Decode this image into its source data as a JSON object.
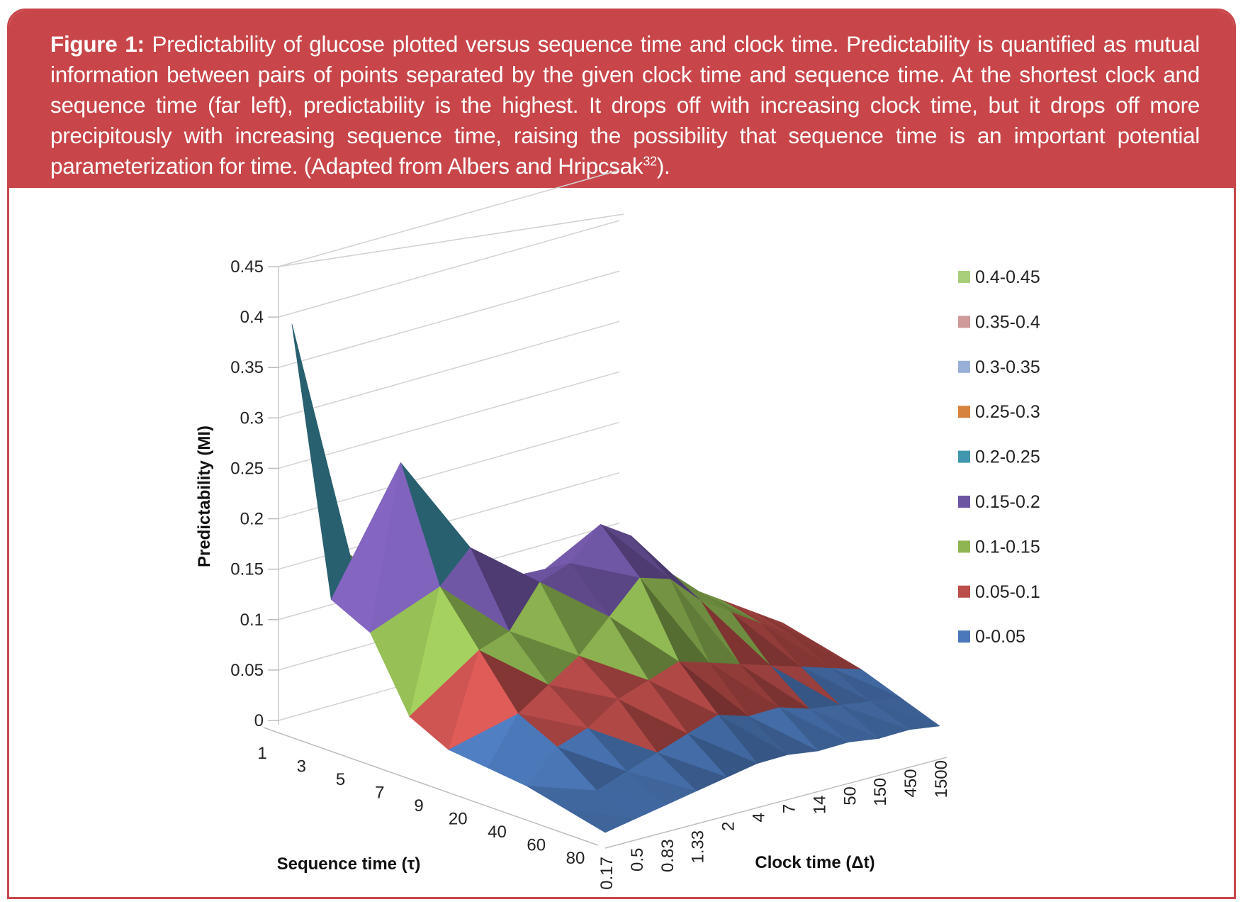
{
  "caption": {
    "label": "Figure 1:",
    "text": " Predictability of glucose plotted versus sequence time and clock time. Predictability is quantified as mutual information between pairs of points separated by the given clock time and sequence time. At the shortest clock and sequence time (far left), predictability is the highest. It drops off with increasing clock time, but it drops off more precipitously with increasing sequence time, raising the possibility that sequence time is an important potential parameterization for time. (Adapted from Albers and Hripcsak",
    "ref": "32",
    "tail": ")."
  },
  "chart_data": {
    "type": "surface",
    "zlabel": "Predictability (MI)",
    "xlabel": "Sequence time (τ)",
    "ylabel": "Clock time (Δt)",
    "z_ticks": [
      "0",
      "0.05",
      "0.1",
      "0.15",
      "0.2",
      "0.25",
      "0.3",
      "0.35",
      "0.4",
      "0.45"
    ],
    "zlim": [
      0,
      0.45
    ],
    "sequence_ticks": [
      "1",
      "3",
      "5",
      "7",
      "9",
      "20",
      "40",
      "60",
      "80"
    ],
    "clock_ticks": [
      "0.17",
      "0.5",
      "0.83",
      "1.33",
      "2",
      "4",
      "7",
      "14",
      "50",
      "150",
      "450",
      "1500"
    ],
    "legend": [
      {
        "label": "0.4-0.45",
        "color": "#a9cf7a"
      },
      {
        "label": "0.35-0.4",
        "color": "#cf9a9a"
      },
      {
        "label": "0.3-0.35",
        "color": "#98b0d6"
      },
      {
        "label": "0.25-0.3",
        "color": "#d6833f"
      },
      {
        "label": "0.2-0.25",
        "color": "#3f96ad"
      },
      {
        "label": "0.15-0.2",
        "color": "#6e55a2"
      },
      {
        "label": "0.1-0.15",
        "color": "#8eb552"
      },
      {
        "label": "0.05-0.1",
        "color": "#bb4d4a"
      },
      {
        "label": "0-0.05",
        "color": "#4b78b9"
      }
    ],
    "surface": {
      "note_rows": "rows = sequence time ticks (1..80), cols = clock time ticks (0.17..1500)",
      "values": [
        [
          0.4,
          0.18,
          0.15,
          0.14,
          0.12,
          0.1,
          0.085,
          0.075,
          0.065,
          0.055,
          0.045,
          0.035
        ],
        [
          0.14,
          0.13,
          0.14,
          0.13,
          0.12,
          0.1,
          0.09,
          0.08,
          0.07,
          0.06,
          0.05,
          0.04
        ],
        [
          0.12,
          0.28,
          0.18,
          0.15,
          0.13,
          0.11,
          0.1,
          0.09,
          0.075,
          0.065,
          0.055,
          0.045
        ],
        [
          0.05,
          0.17,
          0.2,
          0.16,
          0.15,
          0.13,
          0.12,
          0.1,
          0.085,
          0.075,
          0.065,
          0.05
        ],
        [
          0.03,
          0.12,
          0.13,
          0.17,
          0.18,
          0.21,
          0.19,
          0.15,
          0.12,
          0.1,
          0.08,
          0.06
        ],
        [
          0.025,
          0.07,
          0.09,
          0.11,
          0.14,
          0.17,
          0.16,
          0.13,
          0.11,
          0.09,
          0.07,
          0.05
        ],
        [
          0.02,
          0.05,
          0.06,
          0.08,
          0.09,
          0.1,
          0.09,
          0.08,
          0.07,
          0.06,
          0.05,
          0.04
        ],
        [
          0.01,
          0.02,
          0.03,
          0.04,
          0.05,
          0.06,
          0.05,
          0.05,
          0.04,
          0.035,
          0.03,
          0.025
        ],
        [
          0.0,
          0.005,
          0.01,
          0.015,
          0.02,
          0.025,
          0.025,
          0.02,
          0.02,
          0.015,
          0.015,
          0.01
        ]
      ]
    }
  }
}
